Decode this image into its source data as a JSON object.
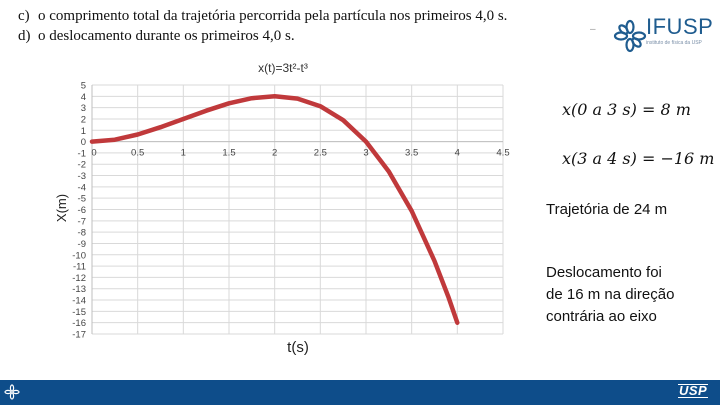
{
  "questions": [
    {
      "label": "c)",
      "text": "o comprimento total da trajetória percorrida pela partícula nos primeiros 4,0 s."
    },
    {
      "label": "d)",
      "text": "o deslocamento durante os primeiros 4,0 s."
    }
  ],
  "header": {
    "dash": "–",
    "logo_text": "IFUSP",
    "logo_sub": "instituto de física da USP"
  },
  "chart_data": {
    "type": "line",
    "title": "x(t)=3t²-t³",
    "xlabel": "t(s)",
    "ylabel": "X(m)",
    "xlim": [
      0,
      4.5
    ],
    "ylim": [
      -17,
      5
    ],
    "x_ticks": [
      "0",
      "0.5",
      "1",
      "1.5",
      "2",
      "2.5",
      "3",
      "3.5",
      "4",
      "4.5"
    ],
    "y_ticks": [
      "5",
      "4",
      "3",
      "2",
      "1",
      "0",
      "-1",
      "-2",
      "-3",
      "-4",
      "-5",
      "-6",
      "-7",
      "-8",
      "-9",
      "-10",
      "-11",
      "-12",
      "-13",
      "-14",
      "-15",
      "-16",
      "-17"
    ],
    "grid": true,
    "series": [
      {
        "color": "#c0393b",
        "x": [
          0,
          0.25,
          0.5,
          0.75,
          1,
          1.25,
          1.5,
          1.75,
          2,
          2.25,
          2.5,
          2.75,
          3,
          3.25,
          3.5,
          3.75,
          3.9,
          4.0
        ],
        "y": [
          0,
          0.17,
          0.63,
          1.27,
          2,
          2.73,
          3.38,
          3.83,
          4,
          3.8,
          3.13,
          1.89,
          0,
          -2.64,
          -6.13,
          -10.55,
          -13.68,
          -16
        ]
      }
    ]
  },
  "annotations": {
    "eq1": "x(0 a 3 s) = 8 m",
    "eq2": "x(3 a 4 s) = −16 m",
    "trajetoria": "Trajetória de  24 m",
    "deslocamento": [
      "Deslocamento foi",
      "de 16 m na direção",
      "contrária ao eixo"
    ]
  },
  "footer": {
    "usp": "USP"
  }
}
